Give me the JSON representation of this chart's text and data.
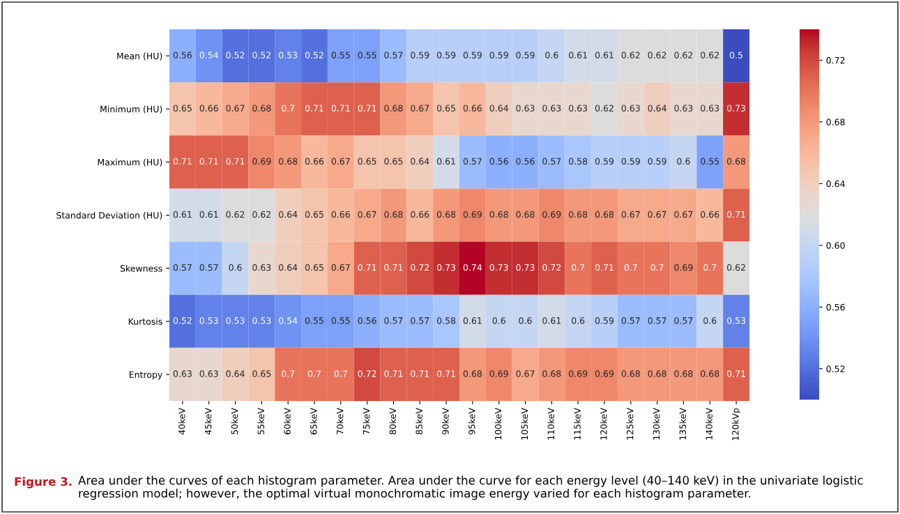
{
  "chart_data": {
    "type": "heatmap",
    "categories": [
      "40keV",
      "45keV",
      "50keV",
      "55keV",
      "60keV",
      "65keV",
      "70keV",
      "75keV",
      "80keV",
      "85keV",
      "90keV",
      "95keV",
      "100keV",
      "105keV",
      "110keV",
      "115keV",
      "120keV",
      "125keV",
      "130keV",
      "135keV",
      "140keV",
      "120kVp"
    ],
    "y_categories": [
      "Mean (HU)",
      "Minimum (HU)",
      "Maximum (HU)",
      "Standard Deviation (HU)",
      "Skewness",
      "Kurtosis",
      "Entropy"
    ],
    "cells": [
      [
        0.56,
        0.54,
        0.52,
        0.52,
        0.53,
        0.52,
        0.55,
        0.55,
        0.57,
        0.59,
        0.59,
        0.59,
        0.59,
        0.59,
        0.6,
        0.61,
        0.61,
        0.62,
        0.62,
        0.62,
        0.62,
        0.5
      ],
      [
        0.65,
        0.66,
        0.67,
        0.68,
        0.7,
        0.71,
        0.71,
        0.71,
        0.68,
        0.67,
        0.65,
        0.66,
        0.64,
        0.63,
        0.63,
        0.63,
        0.62,
        0.63,
        0.64,
        0.63,
        0.63,
        0.73
      ],
      [
        0.71,
        0.71,
        0.71,
        0.69,
        0.68,
        0.66,
        0.67,
        0.65,
        0.65,
        0.64,
        0.61,
        0.57,
        0.56,
        0.56,
        0.57,
        0.58,
        0.59,
        0.59,
        0.59,
        0.6,
        0.55,
        0.68
      ],
      [
        0.61,
        0.61,
        0.62,
        0.62,
        0.64,
        0.65,
        0.66,
        0.67,
        0.68,
        0.66,
        0.68,
        0.69,
        0.68,
        0.68,
        0.69,
        0.68,
        0.68,
        0.67,
        0.67,
        0.67,
        0.66,
        0.71
      ],
      [
        0.57,
        0.57,
        0.6,
        0.63,
        0.64,
        0.65,
        0.67,
        0.71,
        0.71,
        0.72,
        0.73,
        0.74,
        0.73,
        0.73,
        0.72,
        0.7,
        0.71,
        0.7,
        0.7,
        0.69,
        0.7,
        0.62
      ],
      [
        0.52,
        0.53,
        0.53,
        0.53,
        0.54,
        0.55,
        0.55,
        0.56,
        0.57,
        0.57,
        0.58,
        0.61,
        0.6,
        0.6,
        0.61,
        0.6,
        0.59,
        0.57,
        0.57,
        0.57,
        0.6,
        0.53
      ],
      [
        0.63,
        0.63,
        0.64,
        0.65,
        0.7,
        0.7,
        0.7,
        0.72,
        0.71,
        0.71,
        0.71,
        0.68,
        0.69,
        0.67,
        0.68,
        0.69,
        0.69,
        0.68,
        0.68,
        0.68,
        0.68,
        0.71
      ]
    ],
    "data_labels": true,
    "clim": [
      0.5,
      0.74
    ],
    "cticks": [
      {
        "value": 0.52,
        "label": "0.52"
      },
      {
        "value": 0.56,
        "label": "0.56"
      },
      {
        "value": 0.6,
        "label": "0.60"
      },
      {
        "value": 0.64,
        "label": "0.64"
      },
      {
        "value": 0.68,
        "label": "0.68"
      },
      {
        "value": 0.72,
        "label": "0.72"
      }
    ],
    "annotations": [
      "Figure 3.",
      "Area under the curves of each histogram parameter. Area under the curve for each energy level (40–140 keV) in the univariate logistic regression model; however, the optimal virtual monochromatic image energy varied for each histogram parameter."
    ]
  }
}
